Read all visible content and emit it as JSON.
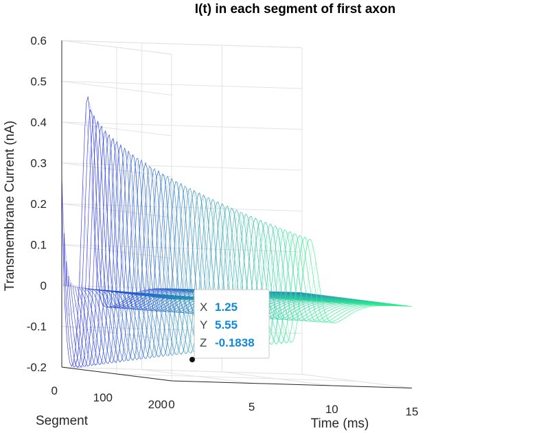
{
  "chart_data": {
    "type": "mesh3d",
    "title": "I(t) in each segment of first axon",
    "xlabel": "Time (ms)",
    "ylabel": "Segment",
    "zlabel": "Transmembrane Current (nA)",
    "xlim": [
      0,
      15
    ],
    "ylim": [
      0,
      200
    ],
    "zlim": [
      -0.2,
      0.6
    ],
    "x_ticks": [
      "0",
      "5",
      "10",
      "15"
    ],
    "y_ticks": [
      "0",
      "100",
      "200"
    ],
    "z_ticks": [
      "-0.2",
      "-0.1",
      "0",
      "0.1",
      "0.2",
      "0.3",
      "0.4",
      "0.5",
      "0.6"
    ],
    "colormap": [
      "#1f1fe6",
      "#2ef08f"
    ],
    "surface": {
      "description": "Per-segment current waveform I(t); sharp capacitive spike near t=0 at low segments, depolarizing peak (~0.52 nA) propagating to later times as segment increases, followed by hyperpolarizing dip (~-0.18 nA).",
      "features": [
        {
          "name": "onset spike",
          "time_ms": 0.05,
          "segment": 0,
          "current_nA": 0.37
        },
        {
          "name": "main peak",
          "time_ms": 1.6,
          "segment": 5,
          "current_nA": 0.52
        },
        {
          "name": "late peak",
          "time_ms": 8.6,
          "segment": 195,
          "current_nA": 0.2
        },
        {
          "name": "trough",
          "time_ms": 1.25,
          "segment": 5.55,
          "current_nA": -0.1838
        }
      ]
    },
    "datatip": {
      "x_label": "X",
      "x_value": "1.25",
      "y_label": "Y",
      "y_value": "5.55",
      "z_label": "Z",
      "z_value": "-0.1838",
      "value_color": "#0e88d8"
    }
  }
}
